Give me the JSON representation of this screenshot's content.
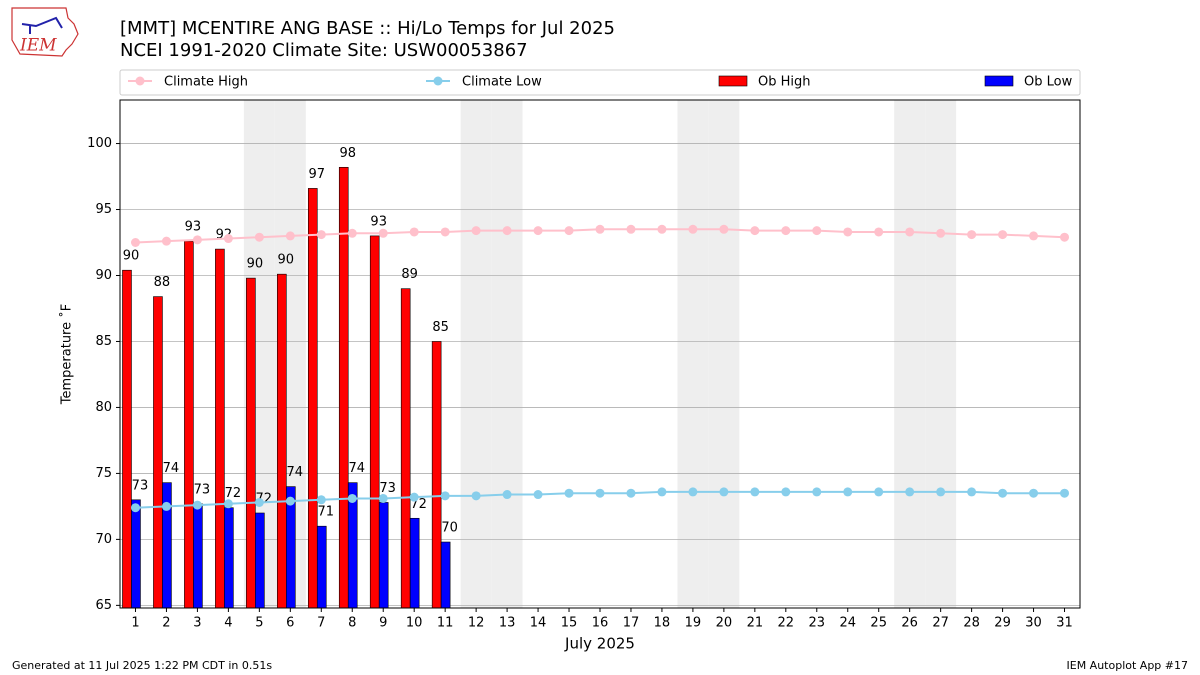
{
  "logo_text": "IEM",
  "footer_left": "Generated at 11 Jul 2025 1:22 PM CDT in 0.51s",
  "footer_right": "IEM Autoplot App #17",
  "chart_data": {
    "type": "bar_line",
    "title": "[MMT] MCENTIRE ANG BASE :: Hi/Lo Temps for Jul 2025",
    "subtitle": "NCEI 1991-2020 Climate Site: USW00053867",
    "xlabel": "July 2025",
    "ylabel": "Temperature ˚F",
    "x": [
      1,
      2,
      3,
      4,
      5,
      6,
      7,
      8,
      9,
      10,
      11,
      12,
      13,
      14,
      15,
      16,
      17,
      18,
      19,
      20,
      21,
      22,
      23,
      24,
      25,
      26,
      27,
      28,
      29,
      30,
      31
    ],
    "xlim": [
      0.5,
      31.5
    ],
    "xticks": [
      1,
      2,
      3,
      4,
      5,
      6,
      7,
      8,
      9,
      10,
      11,
      12,
      13,
      14,
      15,
      16,
      17,
      18,
      19,
      20,
      21,
      22,
      23,
      24,
      25,
      26,
      27,
      28,
      29,
      30,
      31
    ],
    "ylim": [
      64.8,
      103.3
    ],
    "yticks": [
      65,
      70,
      75,
      80,
      85,
      90,
      95,
      100
    ],
    "grid": true,
    "shaded_x": [
      5,
      6,
      12,
      13,
      19,
      20,
      26,
      27
    ],
    "shade_color": "#eeeeee",
    "series": [
      {
        "name": "Climate High",
        "kind": "line",
        "color": "#ffc0cb",
        "values": [
          92.5,
          92.6,
          92.7,
          92.8,
          92.9,
          93.0,
          93.1,
          93.2,
          93.2,
          93.3,
          93.3,
          93.4,
          93.4,
          93.4,
          93.4,
          93.5,
          93.5,
          93.5,
          93.5,
          93.5,
          93.4,
          93.4,
          93.4,
          93.3,
          93.3,
          93.3,
          93.2,
          93.1,
          93.1,
          93.0,
          92.9
        ]
      },
      {
        "name": "Climate Low",
        "kind": "line",
        "color": "#87ceeb",
        "values": [
          72.4,
          72.5,
          72.6,
          72.7,
          72.8,
          72.9,
          73.0,
          73.1,
          73.1,
          73.2,
          73.3,
          73.3,
          73.4,
          73.4,
          73.5,
          73.5,
          73.5,
          73.6,
          73.6,
          73.6,
          73.6,
          73.6,
          73.6,
          73.6,
          73.6,
          73.6,
          73.6,
          73.6,
          73.5,
          73.5,
          73.5
        ]
      },
      {
        "name": "Ob High",
        "kind": "bar",
        "color": "#ff0000",
        "values": [
          90.4,
          88.4,
          92.6,
          92.0,
          89.8,
          90.1,
          96.6,
          98.2,
          93.0,
          89.0,
          85.0,
          null,
          null,
          null,
          null,
          null,
          null,
          null,
          null,
          null,
          null,
          null,
          null,
          null,
          null,
          null,
          null,
          null,
          null,
          null,
          null
        ],
        "value_labels": [
          "90",
          "88",
          "93",
          "92",
          "90",
          "90",
          "97",
          "98",
          "93",
          "89",
          "85",
          null,
          null,
          null,
          null,
          null,
          null,
          null,
          null,
          null,
          null,
          null,
          null,
          null,
          null,
          null,
          null,
          null,
          null,
          null,
          null
        ]
      },
      {
        "name": "Ob Low",
        "kind": "bar",
        "color": "#0000ff",
        "values": [
          73.0,
          74.3,
          72.7,
          72.4,
          72.0,
          74.0,
          71.0,
          74.3,
          72.8,
          71.6,
          69.8,
          null,
          null,
          null,
          null,
          null,
          null,
          null,
          null,
          null,
          null,
          null,
          null,
          null,
          null,
          null,
          null,
          null,
          null,
          null,
          null
        ],
        "value_labels": [
          "73",
          "74",
          "73",
          "72",
          "72",
          "74",
          "71",
          "74",
          "73",
          "72",
          "70",
          null,
          null,
          null,
          null,
          null,
          null,
          null,
          null,
          null,
          null,
          null,
          null,
          null,
          null,
          null,
          null,
          null,
          null,
          null,
          null
        ]
      }
    ]
  }
}
